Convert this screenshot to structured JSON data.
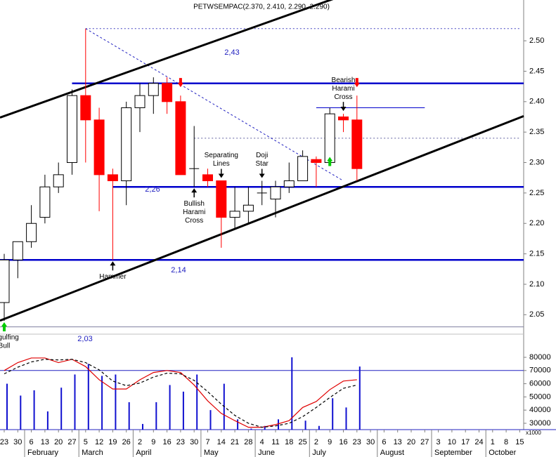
{
  "chart_data": [
    {
      "type": "candlestick",
      "title": "PETWSEMPAC(2.370, 2.410, 2.290, 2.290)",
      "open": [
        2.07,
        2.14,
        2.17,
        2.21,
        2.26,
        2.3,
        2.41,
        2.37,
        2.28,
        2.27,
        2.39,
        2.41,
        2.43,
        2.4,
        2.29,
        2.28,
        2.27,
        2.21,
        2.22,
        2.25,
        2.24,
        2.26,
        2.27,
        2.305,
        2.3,
        2.375,
        2.37,
        null,
        null,
        null,
        null,
        null,
        null,
        null,
        null,
        null,
        null,
        null,
        null
      ],
      "high": [
        2.15,
        2.17,
        2.23,
        2.28,
        2.3,
        2.42,
        2.52,
        2.39,
        2.29,
        2.4,
        2.43,
        2.44,
        2.44,
        2.41,
        2.36,
        2.29,
        2.27,
        2.26,
        2.26,
        2.27,
        2.27,
        2.3,
        2.32,
        2.31,
        2.39,
        2.38,
        2.41,
        null,
        null,
        null,
        null,
        null,
        null,
        null,
        null,
        null,
        null,
        null,
        null
      ],
      "low": [
        2.04,
        2.11,
        2.16,
        2.2,
        2.25,
        2.28,
        2.3,
        2.22,
        2.14,
        2.23,
        2.35,
        2.38,
        2.38,
        2.28,
        2.26,
        2.26,
        2.16,
        2.19,
        2.2,
        2.23,
        2.21,
        2.25,
        2.27,
        2.26,
        2.3,
        2.35,
        2.27,
        null,
        null,
        null,
        null,
        null,
        null,
        null,
        null,
        null,
        null,
        null,
        null
      ],
      "close": [
        2.14,
        2.17,
        2.2,
        2.26,
        2.28,
        2.41,
        2.37,
        2.28,
        2.27,
        2.39,
        2.41,
        2.43,
        2.4,
        2.28,
        2.29,
        2.27,
        2.21,
        2.22,
        2.23,
        2.25,
        2.26,
        2.27,
        2.31,
        2.3,
        2.38,
        2.37,
        2.29,
        null,
        null,
        null,
        null,
        null,
        null,
        null,
        null,
        null,
        null,
        null,
        null
      ],
      "up_color": "#ffffff",
      "down_color": "#ff0000",
      "ylim": [
        2.025,
        2.567
      ],
      "yticks": [
        2.05,
        {
          "value": 2.1,
          "label": "2.10"
        },
        2.15,
        {
          "value": 2.2,
          "label": "2.20"
        },
        2.25,
        {
          "value": 2.3,
          "label": "2.30"
        },
        2.35,
        {
          "value": 2.4,
          "label": "2.40"
        },
        2.45,
        {
          "value": 2.5,
          "label": "2.50"
        }
      ],
      "levels": [
        {
          "value": 2.43,
          "label": "2,43",
          "from": 5,
          "color": "#0000cc",
          "style": "thick"
        },
        {
          "value": 2.26,
          "label": "2,26",
          "from": 8,
          "color": "#0000cc",
          "style": "thick"
        },
        {
          "value": 2.14,
          "label": "2,14",
          "from": 0,
          "color": "#0000cc",
          "style": "thick"
        },
        {
          "value": 2.03,
          "label": "2,03",
          "from": 0,
          "color": "#8080a0",
          "style": "thin"
        }
      ],
      "lines": [
        {
          "value": 2.52,
          "from": 6,
          "to": 38,
          "color": "#4040c0",
          "style": "dotted"
        },
        {
          "value": 2.34,
          "from": 14,
          "to": 38,
          "color": "#6060a0",
          "style": "dotted"
        },
        {
          "value": 2.39,
          "from": 23,
          "to": 31,
          "color": "#0000cc",
          "style": "solid"
        }
      ],
      "trendlines": [
        {
          "points": [
            [
              5,
              2.416
            ],
            [
              20,
              2.535
            ]
          ],
          "color": "#000000"
        },
        {
          "points": [
            [
              0,
              2.043
            ],
            [
              27,
              2.278
            ]
          ],
          "color": "#000000"
        }
      ],
      "dashed_line": {
        "points": [
          [
            6,
            2.52
          ],
          [
            25,
            2.27
          ]
        ],
        "color": "#2020c0"
      },
      "annotations": [
        {
          "lines": [
            "Engulfing",
            "Bull"
          ],
          "index": 0,
          "side": "below",
          "arrow_color": "#00cc00"
        },
        {
          "lines": [
            "Hammer"
          ],
          "index": 8,
          "side": "below",
          "arrow_color": "#000000"
        },
        {
          "lines": [
            "Bullish",
            "Harami",
            "Cross"
          ],
          "index": 14,
          "side": "below",
          "arrow_color": "#000000"
        },
        {
          "lines": [
            "Separating",
            "Lines"
          ],
          "index": 16,
          "side": "above",
          "arrow_color": "#000000"
        },
        {
          "lines": [
            "Doji",
            "Star"
          ],
          "index": 19,
          "side": "above",
          "arrow_color": "#000000"
        },
        {
          "lines": [
            "Bearish",
            "Harami",
            "Cross"
          ],
          "index": 25,
          "side": "above",
          "arrow_color": "#000000"
        }
      ],
      "arrows": [
        {
          "index": 13,
          "dir": "down",
          "color": "#ff0000"
        },
        {
          "index": 24,
          "dir": "up",
          "color": "#00cc00"
        },
        {
          "index": 26,
          "dir": "down",
          "color": "#ff0000"
        }
      ]
    },
    {
      "type": "bar",
      "categories": [
        "23",
        "30",
        "6",
        "13",
        "20",
        "27",
        "5",
        "12",
        "19",
        "26",
        "2",
        "9",
        "16",
        "23",
        "30",
        "7",
        "14",
        "21",
        "28",
        "4",
        "11",
        "18",
        "25",
        "2",
        "9",
        "16",
        "23",
        "30",
        "6",
        "13",
        "20",
        "27",
        "3",
        "10",
        "17",
        "24",
        "1",
        "8",
        "15"
      ],
      "months": [
        null,
        null,
        "February",
        null,
        null,
        null,
        "March",
        null,
        null,
        null,
        "April",
        null,
        null,
        null,
        null,
        "May",
        null,
        null,
        null,
        "June",
        null,
        null,
        null,
        "July",
        null,
        null,
        null,
        null,
        "August",
        null,
        null,
        null,
        "September",
        null,
        null,
        null,
        "October",
        null,
        null
      ],
      "values": [
        60000,
        51000,
        55000,
        39000,
        57000,
        67000,
        75000,
        66000,
        67000,
        46000,
        29500,
        46000,
        59000,
        54000,
        67000,
        40000,
        60000,
        33000,
        26000,
        28000,
        33000,
        80000,
        32000,
        28000,
        49000,
        42000,
        73000,
        null,
        null,
        null,
        null,
        null,
        null,
        null,
        null,
        null,
        null,
        null,
        null
      ],
      "color": "#1010d0",
      "series": [
        {
          "color": "#e00000",
          "style": "solid",
          "values": [
            70000,
            76000,
            79500,
            79500,
            76000,
            78500,
            73000,
            63000,
            56000,
            56000,
            63000,
            68500,
            70000,
            68500,
            59000,
            47000,
            37500,
            32000,
            27000,
            27000,
            29000,
            32000,
            42000,
            46500,
            55500,
            62000,
            63000,
            null,
            null,
            null,
            null,
            null,
            null,
            null,
            null,
            null,
            null,
            null,
            null
          ]
        },
        {
          "color": "#000000",
          "style": "dashed",
          "values": [
            67500,
            72500,
            76500,
            78500,
            78000,
            78500,
            76000,
            70500,
            62000,
            58500,
            60500,
            65000,
            68000,
            67500,
            62500,
            54000,
            44500,
            36000,
            30000,
            27000,
            28000,
            30000,
            35000,
            42000,
            49500,
            56500,
            59000,
            null,
            null,
            null,
            null,
            null,
            null,
            null,
            null,
            null,
            null,
            null,
            null
          ]
        }
      ],
      "levels": [
        {
          "value": 70000,
          "color": "#2020c0"
        }
      ],
      "ylim": [
        25200,
        96500
      ],
      "yticks": [
        30000,
        40000,
        50000,
        60000,
        70000,
        80000
      ],
      "unit_label": "x1000"
    }
  ]
}
